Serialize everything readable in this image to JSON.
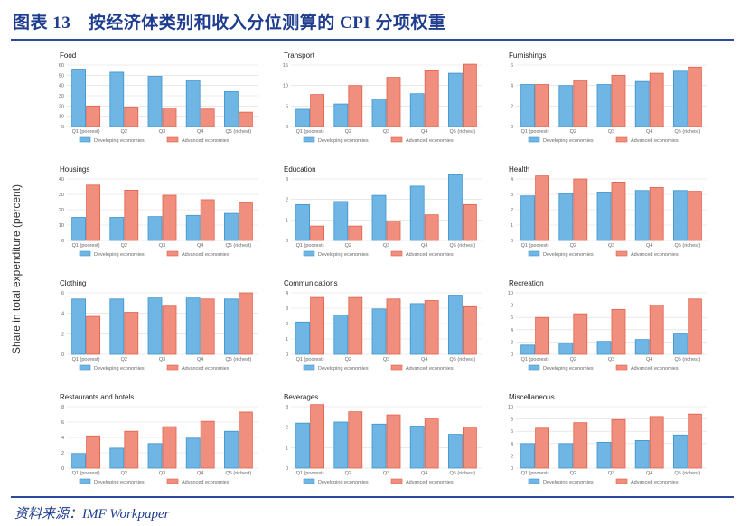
{
  "title": "图表 13　按经济体类别和收入分位测算的 CPI 分项权重",
  "source": "资料来源：IMF Workpaper",
  "ylabel": "Share in total expenditure (percent)",
  "colors": {
    "developing": "#6fb6e4",
    "advanced": "#f08f7d",
    "accent": "#1f3d8f"
  },
  "chart_data": [
    {
      "type": "bar",
      "title": "Food",
      "categories": [
        "Q1 (poorest)",
        "Q2",
        "Q3",
        "Q4",
        "Q5 (richest)"
      ],
      "ylim": [
        0,
        60
      ],
      "yticks": [
        0,
        10,
        20,
        30,
        40,
        50,
        60
      ],
      "series": [
        {
          "name": "Developing economies",
          "values": [
            56,
            53,
            49,
            45,
            34
          ]
        },
        {
          "name": "Advanced economies",
          "values": [
            20,
            19,
            18,
            17,
            14
          ]
        }
      ]
    },
    {
      "type": "bar",
      "title": "Transport",
      "categories": [
        "Q1 (poorest)",
        "Q2",
        "Q3",
        "Q4",
        "Q5 (richest)"
      ],
      "ylim": [
        0,
        15
      ],
      "yticks": [
        0,
        5,
        10,
        15
      ],
      "series": [
        {
          "name": "Developing economies",
          "values": [
            4.2,
            5.5,
            6.7,
            8,
            13
          ]
        },
        {
          "name": "Advanced economies",
          "values": [
            7.8,
            10,
            12,
            13.6,
            15.2
          ]
        }
      ]
    },
    {
      "type": "bar",
      "title": "Furnishings",
      "categories": [
        "Q1 (poorest)",
        "Q2",
        "Q3",
        "Q4",
        "Q5 (richest)"
      ],
      "ylim": [
        0,
        6
      ],
      "yticks": [
        0,
        2,
        4,
        6
      ],
      "series": [
        {
          "name": "Developing economies",
          "values": [
            4.1,
            4,
            4.1,
            4.4,
            5.4
          ]
        },
        {
          "name": "Advanced economies",
          "values": [
            4.1,
            4.5,
            5,
            5.2,
            5.8
          ]
        }
      ]
    },
    {
      "type": "bar",
      "title": "Housings",
      "categories": [
        "Q1 (poorest)",
        "Q2",
        "Q3",
        "Q4",
        "Q5 (richest)"
      ],
      "ylim": [
        0,
        40
      ],
      "yticks": [
        0,
        10,
        20,
        30,
        40
      ],
      "series": [
        {
          "name": "Developing economies",
          "values": [
            15,
            15,
            15.5,
            16.3,
            17.6
          ]
        },
        {
          "name": "Advanced economies",
          "values": [
            36,
            32.7,
            29.4,
            26.5,
            24.4
          ]
        }
      ]
    },
    {
      "type": "bar",
      "title": "Education",
      "categories": [
        "Q1 (poorest)",
        "Q2",
        "Q3",
        "Q4",
        "Q5 (richest)"
      ],
      "ylim": [
        0,
        3
      ],
      "yticks": [
        0,
        1,
        2,
        3
      ],
      "series": [
        {
          "name": "Developing economies",
          "values": [
            1.75,
            1.9,
            2.2,
            2.65,
            3.2
          ]
        },
        {
          "name": "Advanced economies",
          "values": [
            0.7,
            0.7,
            0.95,
            1.25,
            1.75
          ]
        }
      ]
    },
    {
      "type": "bar",
      "title": "Health",
      "categories": [
        "Q1 (poorest)",
        "Q2",
        "Q3",
        "Q4",
        "Q5 (richest)"
      ],
      "ylim": [
        0,
        4
      ],
      "yticks": [
        0,
        1,
        2,
        3,
        4
      ],
      "series": [
        {
          "name": "Developing economies",
          "values": [
            2.9,
            3.05,
            3.15,
            3.25,
            3.25
          ]
        },
        {
          "name": "Advanced economies",
          "values": [
            4.2,
            4,
            3.8,
            3.45,
            3.2
          ]
        }
      ]
    },
    {
      "type": "bar",
      "title": "Clothing",
      "categories": [
        "Q1 (poorest)",
        "Q2",
        "Q3",
        "Q4",
        "Q5 (richest)"
      ],
      "ylim": [
        0,
        6
      ],
      "yticks": [
        0,
        2,
        4,
        6
      ],
      "series": [
        {
          "name": "Developing economies",
          "values": [
            5.4,
            5.4,
            5.5,
            5.5,
            5.4
          ]
        },
        {
          "name": "Advanced economies",
          "values": [
            3.7,
            4.1,
            4.7,
            5.4,
            6
          ]
        }
      ]
    },
    {
      "type": "bar",
      "title": "Communications",
      "categories": [
        "Q1 (poorest)",
        "Q2",
        "Q3",
        "Q4",
        "Q5 (richest)"
      ],
      "ylim": [
        0,
        4
      ],
      "yticks": [
        0,
        1,
        2,
        3,
        4
      ],
      "series": [
        {
          "name": "Developing economies",
          "values": [
            2.1,
            2.55,
            2.95,
            3.3,
            3.85
          ]
        },
        {
          "name": "Advanced economies",
          "values": [
            3.7,
            3.7,
            3.6,
            3.5,
            3.1
          ]
        }
      ]
    },
    {
      "type": "bar",
      "title": "Recreation",
      "categories": [
        "Q1 (poorest)",
        "Q2",
        "Q3",
        "Q4",
        "Q5 (richest)"
      ],
      "ylim": [
        0,
        10
      ],
      "yticks": [
        0,
        2,
        4,
        6,
        8,
        10
      ],
      "series": [
        {
          "name": "Developing economies",
          "values": [
            1.5,
            1.8,
            2.1,
            2.4,
            3.3
          ]
        },
        {
          "name": "Advanced economies",
          "values": [
            6,
            6.6,
            7.3,
            8,
            9
          ]
        }
      ]
    },
    {
      "type": "bar",
      "title": "Restaurants and hotels",
      "categories": [
        "Q1 (poorest)",
        "Q2",
        "Q3",
        "Q4",
        "Q5 (richest)"
      ],
      "ylim": [
        0,
        8
      ],
      "yticks": [
        0,
        2,
        4,
        6,
        8
      ],
      "series": [
        {
          "name": "Developing economies",
          "values": [
            1.9,
            2.6,
            3.2,
            3.9,
            4.8
          ]
        },
        {
          "name": "Advanced economies",
          "values": [
            4.2,
            4.8,
            5.4,
            6.1,
            7.3
          ]
        }
      ]
    },
    {
      "type": "bar",
      "title": "Beverages",
      "categories": [
        "Q1 (poorest)",
        "Q2",
        "Q3",
        "Q4",
        "Q5 (richest)"
      ],
      "ylim": [
        0,
        3
      ],
      "yticks": [
        0,
        1,
        2,
        3
      ],
      "series": [
        {
          "name": "Developing economies",
          "values": [
            2.2,
            2.25,
            2.15,
            2.05,
            1.65
          ]
        },
        {
          "name": "Advanced economies",
          "values": [
            3.1,
            2.75,
            2.6,
            2.4,
            2
          ]
        }
      ]
    },
    {
      "type": "bar",
      "title": "Miscellaneous",
      "categories": [
        "Q1 (poorest)",
        "Q2",
        "Q3",
        "Q4",
        "Q5 (richest)"
      ],
      "ylim": [
        0,
        10
      ],
      "yticks": [
        0,
        2,
        4,
        6,
        8,
        10
      ],
      "series": [
        {
          "name": "Developing economies",
          "values": [
            4,
            4,
            4.2,
            4.5,
            5.4
          ]
        },
        {
          "name": "Advanced economies",
          "values": [
            6.5,
            7.4,
            7.9,
            8.4,
            8.8
          ]
        }
      ]
    }
  ]
}
